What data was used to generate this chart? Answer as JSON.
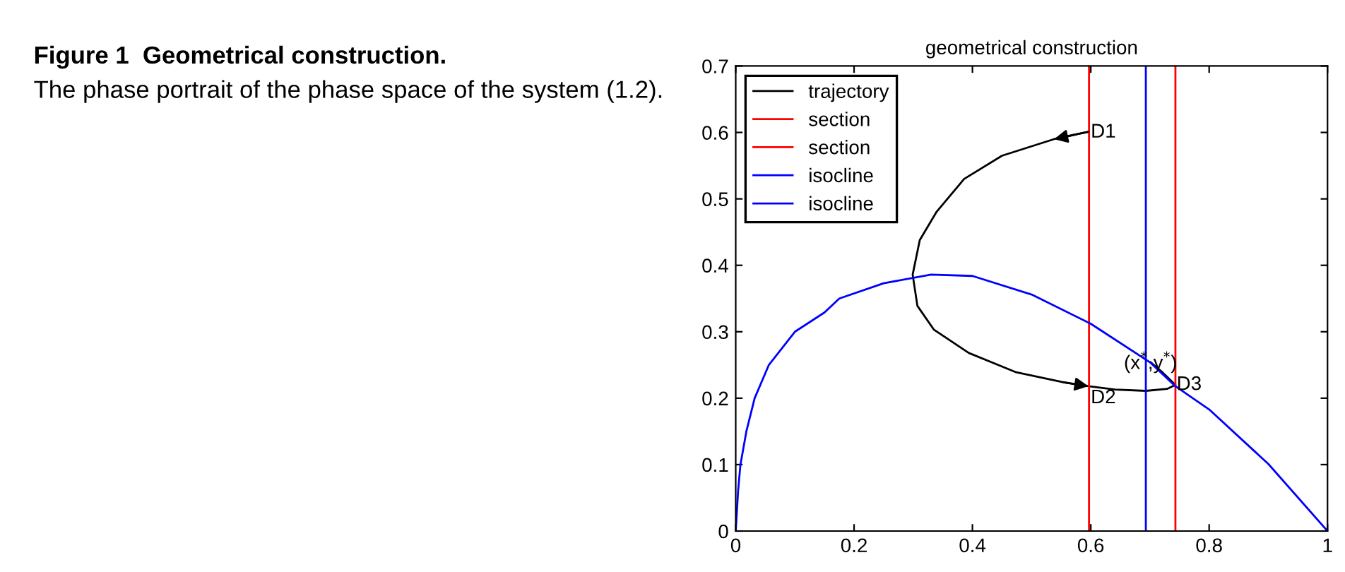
{
  "chart_data": {
    "type": "line",
    "title": "geometrical construction",
    "xlim": [
      0,
      1
    ],
    "ylim": [
      0,
      0.7
    ],
    "xticks": [
      0,
      0.2,
      0.4,
      0.6,
      0.8,
      1
    ],
    "yticks": [
      0,
      0.1,
      0.2,
      0.3,
      0.4,
      0.5,
      0.6,
      0.7
    ],
    "grid": false,
    "legend": "top left",
    "marker": "none",
    "line_style": "solid",
    "series": [
      {
        "name": "trajectory",
        "color": "#000000",
        "x": [
          0.596,
          0.538,
          0.45,
          0.386,
          0.339,
          0.311,
          0.299,
          0.307,
          0.335,
          0.394,
          0.474,
          0.554,
          0.596,
          0.641,
          0.693,
          0.729,
          0.743,
          0.721,
          0.701
        ],
        "values": [
          0.601,
          0.59,
          0.565,
          0.53,
          0.48,
          0.438,
          0.386,
          0.339,
          0.303,
          0.268,
          0.239,
          0.224,
          0.218,
          0.213,
          0.211,
          0.214,
          0.22,
          0.239,
          0.254
        ]
      },
      {
        "name": "section",
        "color": "#ff0000",
        "x": [
          0.597,
          0.597
        ],
        "values": [
          0,
          0.7
        ]
      },
      {
        "name": "section",
        "color": "#ff0000",
        "x": [
          0.743,
          0.743
        ],
        "values": [
          0,
          0.7
        ]
      },
      {
        "name": "isocline",
        "color": "#0000ff",
        "x": [
          0,
          0.004,
          0.008,
          0.018,
          0.032,
          0.056,
          0.1,
          0.15,
          0.175,
          0.25,
          0.33,
          0.4,
          0.5,
          0.6,
          0.7,
          0.743,
          0.8,
          0.9,
          1.0
        ],
        "values": [
          0,
          0.06,
          0.1,
          0.15,
          0.2,
          0.25,
          0.3,
          0.329,
          0.35,
          0.373,
          0.386,
          0.384,
          0.356,
          0.312,
          0.254,
          0.218,
          0.183,
          0.101,
          0
        ]
      },
      {
        "name": "isocline",
        "color": "#0000ff",
        "x": [
          0.693,
          0.693
        ],
        "values": [
          0,
          0.7
        ]
      }
    ],
    "annotations": [
      "Figure 1  Geometrical construction.",
      "The phase portrait of the phase space of the system (1.2).",
      {
        "text": "D1",
        "x": 0.6,
        "y": 0.6
      },
      {
        "text": "D2",
        "x": 0.6,
        "y": 0.2
      },
      {
        "text": "D3",
        "x": 0.745,
        "y": 0.22
      },
      {
        "text": "(x$^{*}$,y$^{*}$)",
        "x": 0.701,
        "y": 0.254
      }
    ]
  }
}
